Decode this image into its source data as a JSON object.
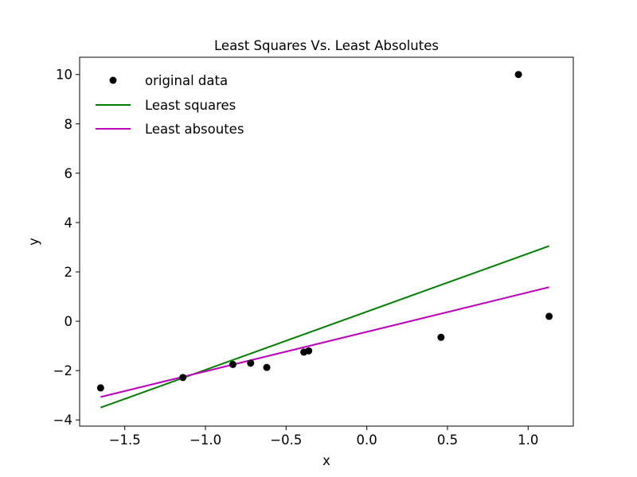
{
  "chart_data": {
    "type": "scatter",
    "title": "Least Squares Vs. Least Absolutes",
    "xlabel": "x",
    "ylabel": "y",
    "xlim": [
      -1.78,
      1.28
    ],
    "ylim": [
      -4.25,
      10.7
    ],
    "xticks": [
      -1.5,
      -1.0,
      -0.5,
      0.0,
      0.5,
      1.0
    ],
    "xtick_labels": [
      "−1.5",
      "−1.0",
      "−0.5",
      "0.0",
      "0.5",
      "1.0"
    ],
    "yticks": [
      -4,
      -2,
      0,
      2,
      4,
      6,
      8,
      10
    ],
    "ytick_labels": [
      "−4",
      "−2",
      "0",
      "2",
      "4",
      "6",
      "8",
      "10"
    ],
    "grid": false,
    "legend_position": "top-left",
    "series": [
      {
        "name": "original data",
        "kind": "scatter",
        "color": "#000000",
        "points": [
          {
            "x": -1.65,
            "y": -2.7
          },
          {
            "x": -1.14,
            "y": -2.28
          },
          {
            "x": -0.83,
            "y": -1.75
          },
          {
            "x": -0.72,
            "y": -1.7
          },
          {
            "x": -0.62,
            "y": -1.87
          },
          {
            "x": -0.39,
            "y": -1.25
          },
          {
            "x": -0.36,
            "y": -1.2
          },
          {
            "x": 0.46,
            "y": -0.65
          },
          {
            "x": 0.94,
            "y": 10.0
          },
          {
            "x": 1.13,
            "y": 0.2
          }
        ]
      },
      {
        "name": "Least squares",
        "kind": "line",
        "color": "#008000",
        "points": [
          {
            "x": -1.65,
            "y": -3.5
          },
          {
            "x": 1.13,
            "y": 3.05
          }
        ]
      },
      {
        "name": "Least absoutes",
        "kind": "line",
        "color": "#bf00bf",
        "points": [
          {
            "x": -1.65,
            "y": -3.07
          },
          {
            "x": 1.13,
            "y": 1.38
          }
        ]
      }
    ]
  }
}
